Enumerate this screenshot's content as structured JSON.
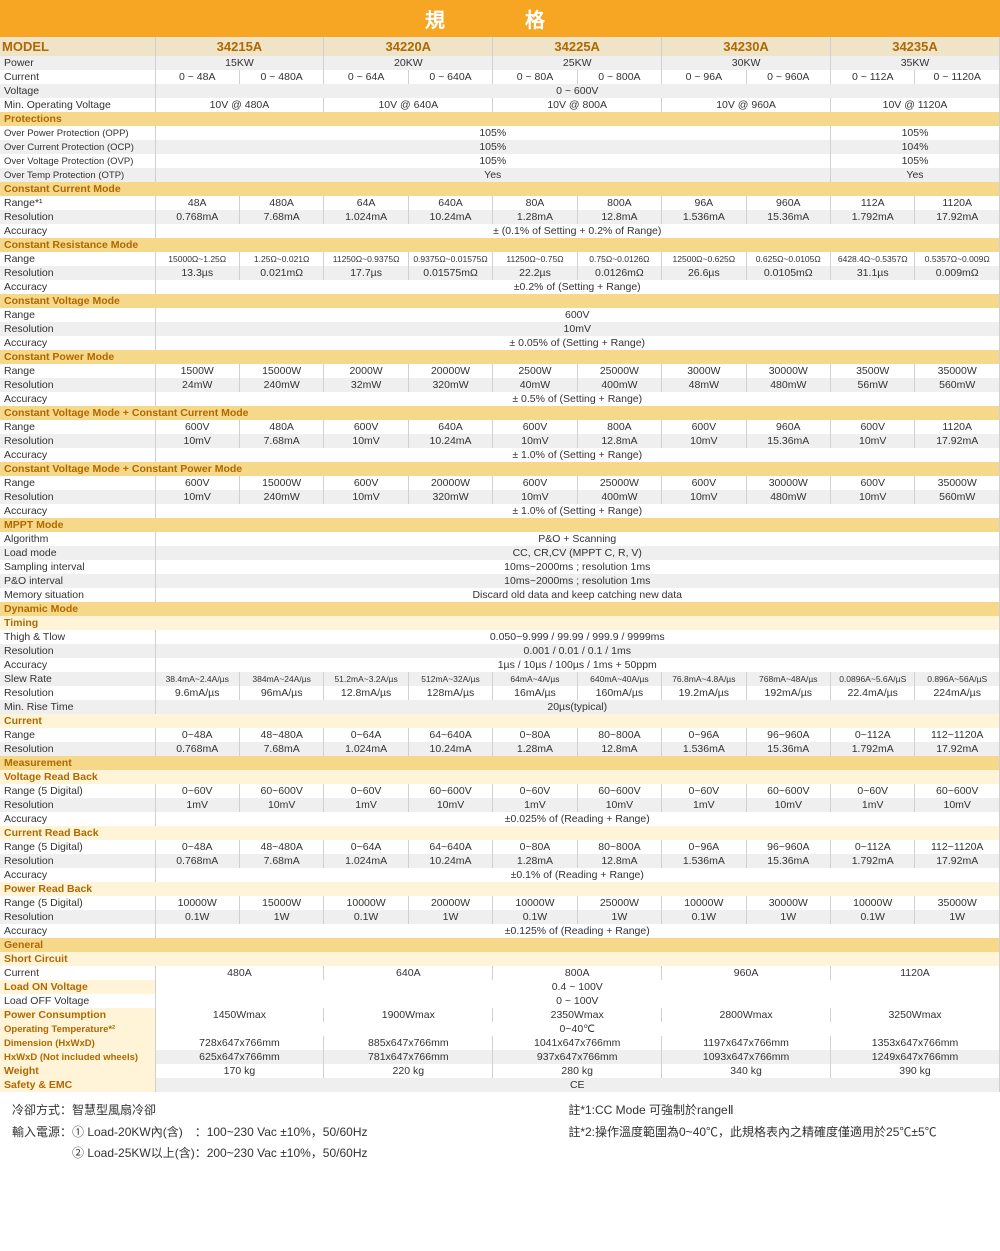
{
  "title": "規　格",
  "models": [
    "34215A",
    "34220A",
    "34225A",
    "34230A",
    "34235A"
  ],
  "rows": [
    {
      "l": "MODEL",
      "hdr": 1,
      "per": 1,
      "v": [
        "34215A",
        "34220A",
        "34225A",
        "34230A",
        "34235A"
      ]
    },
    {
      "l": "Power",
      "v": [
        "15KW",
        "20KW",
        "25KW",
        "30KW",
        "35KW"
      ],
      "per": 1,
      "alt": 1
    },
    {
      "l": "Current",
      "v": [
        "0 ~ 48A",
        "0 ~ 480A",
        "0 ~ 64A",
        "0 ~ 640A",
        "0 ~ 80A",
        "0 ~ 800A",
        "0 ~ 96A",
        "0 ~ 960A",
        "0 ~ 112A",
        "0 ~ 1120A"
      ]
    },
    {
      "l": "Voltage",
      "span": 1,
      "v": "0 ~ 600V",
      "alt": 1
    },
    {
      "l": "Min. Operating Voltage",
      "per": 1,
      "v": [
        "10V @ 480A",
        "10V @ 640A",
        "10V @ 800A",
        "10V @ 960A",
        "10V @ 1120A"
      ]
    },
    {
      "sec": "Protections"
    },
    {
      "l": "Over Power Protection (OPP)",
      "sm": 1,
      "v82": [
        "105%",
        "105%"
      ]
    },
    {
      "l": "Over Current Protection (OCP)",
      "sm": 1,
      "v82": [
        "105%",
        "104%"
      ],
      "alt": 1
    },
    {
      "l": "Over Voltage Protection (OVP)",
      "sm": 1,
      "v82": [
        "105%",
        "105%"
      ]
    },
    {
      "l": "Over Temp Protection (OTP)",
      "sm": 1,
      "v82": [
        "Yes",
        "Yes"
      ],
      "alt": 1
    },
    {
      "sec": "Constant Current Mode"
    },
    {
      "l": "Range*¹",
      "v": [
        "48A",
        "480A",
        "64A",
        "640A",
        "80A",
        "800A",
        "96A",
        "960A",
        "112A",
        "1120A"
      ]
    },
    {
      "l": "Resolution",
      "v": [
        "0.768mA",
        "7.68mA",
        "1.024mA",
        "10.24mA",
        "1.28mA",
        "12.8mA",
        "1.536mA",
        "15.36mA",
        "1.792mA",
        "17.92mA"
      ],
      "alt": 1
    },
    {
      "l": "Accuracy",
      "span": 1,
      "v": "± (0.1% of Setting + 0.2% of Range)"
    },
    {
      "sec": "Constant Resistance Mode"
    },
    {
      "l": "Range",
      "v": [
        "15000Ω~1.25Ω",
        "1.25Ω~0.021Ω",
        "11250Ω~0.9375Ω",
        "0.9375Ω~0.01575Ω",
        "11250Ω~0.75Ω",
        "0.75Ω~0.0126Ω",
        "12500Ω~0.625Ω",
        "0.625Ω~0.0105Ω",
        "6428.4Ω~0.5357Ω",
        "0.5357Ω~0.009Ω"
      ],
      "fs": "8.5px"
    },
    {
      "l": "Resolution",
      "v": [
        "13.3µs",
        "0.021mΩ",
        "17.7µs",
        "0.01575mΩ",
        "22.2µs",
        "0.0126mΩ",
        "26.6µs",
        "0.0105mΩ",
        "31.1µs",
        "0.009mΩ"
      ],
      "alt": 1
    },
    {
      "l": "Accuracy",
      "span": 1,
      "v": "±0.2% of (Setting + Range)"
    },
    {
      "sec": "Constant Voltage Mode"
    },
    {
      "l": "Range",
      "span": 1,
      "v": "600V"
    },
    {
      "l": "Resolution",
      "span": 1,
      "v": "10mV",
      "alt": 1
    },
    {
      "l": "Accuracy",
      "span": 1,
      "v": "± 0.05% of (Setting + Range)"
    },
    {
      "sec": "Constant Power Mode"
    },
    {
      "l": "Range",
      "v": [
        "1500W",
        "15000W",
        "2000W",
        "20000W",
        "2500W",
        "25000W",
        "3000W",
        "30000W",
        "3500W",
        "35000W"
      ]
    },
    {
      "l": "Resolution",
      "v": [
        "24mW",
        "240mW",
        "32mW",
        "320mW",
        "40mW",
        "400mW",
        "48mW",
        "480mW",
        "56mW",
        "560mW"
      ],
      "alt": 1
    },
    {
      "l": "Accuracy",
      "span": 1,
      "v": "± 0.5% of (Setting + Range)"
    },
    {
      "sec": "Constant Voltage Mode + Constant Current Mode"
    },
    {
      "l": "Range",
      "v": [
        "600V",
        "480A",
        "600V",
        "640A",
        "600V",
        "800A",
        "600V",
        "960A",
        "600V",
        "1120A"
      ]
    },
    {
      "l": "Resolution",
      "v": [
        "10mV",
        "7.68mA",
        "10mV",
        "10.24mA",
        "10mV",
        "12.8mA",
        "10mV",
        "15.36mA",
        "10mV",
        "17.92mA"
      ],
      "alt": 1
    },
    {
      "l": "Accuracy",
      "span": 1,
      "v": "± 1.0% of (Setting + Range)"
    },
    {
      "sec": "Constant Voltage Mode + Constant Power Mode"
    },
    {
      "l": "Range",
      "v": [
        "600V",
        "15000W",
        "600V",
        "20000W",
        "600V",
        "25000W",
        "600V",
        "30000W",
        "600V",
        "35000W"
      ]
    },
    {
      "l": "Resolution",
      "v": [
        "10mV",
        "240mW",
        "10mV",
        "320mW",
        "10mV",
        "400mW",
        "10mV",
        "480mW",
        "10mV",
        "560mW"
      ],
      "alt": 1
    },
    {
      "l": "Accuracy",
      "span": 1,
      "v": "± 1.0% of (Setting + Range)"
    },
    {
      "sec": "MPPT Mode"
    },
    {
      "l": "Algorithm",
      "span": 1,
      "v": "P&O + Scanning"
    },
    {
      "l": "Load mode",
      "span": 1,
      "v": "CC, CR,CV (MPPT C, R, V)",
      "alt": 1
    },
    {
      "l": "Sampling interval",
      "span": 1,
      "v": "10ms~2000ms ; resolution 1ms"
    },
    {
      "l": "P&O interval",
      "span": 1,
      "v": "10ms~2000ms ; resolution 1ms",
      "alt": 1
    },
    {
      "l": "Memory situation",
      "span": 1,
      "v": "Discard old data and keep catching new data"
    },
    {
      "sec": "Dynamic Mode"
    },
    {
      "sub": "Timing"
    },
    {
      "l": "Thigh & Tlow",
      "span": 1,
      "v": "0.050~9.999 / 99.99 / 999.9 / 9999ms"
    },
    {
      "l": "Resolution",
      "span": 1,
      "v": "0.001 / 0.01 / 0.1 / 1ms",
      "alt": 1
    },
    {
      "l": "Accuracy",
      "span": 1,
      "v": "1µs / 10µs / 100µs / 1ms + 50ppm"
    },
    {
      "l": "Slew Rate",
      "v": [
        "38.4mA~2.4A/µs",
        "384mA~24A/µs",
        "51.2mA~3.2A/µs",
        "512mA~32A/µs",
        "64mA~4A/µs",
        "640mA~40A/µs",
        "76.8mA~4.8A/µs",
        "768mA~48A/µs",
        "0.0896A~5.6A/µS",
        "0.896A~56A/µS"
      ],
      "alt": 1,
      "fs": "8.5px"
    },
    {
      "l": "Resolution",
      "v": [
        "9.6mA/µs",
        "96mA/µs",
        "12.8mA/µs",
        "128mA/µs",
        "16mA/µs",
        "160mA/µs",
        "19.2mA/µs",
        "192mA/µs",
        "22.4mA/µs",
        "224mA/µs"
      ]
    },
    {
      "l": "Min. Rise Time",
      "span": 1,
      "v": "20µs(typical)",
      "alt": 1
    },
    {
      "sub": "Current"
    },
    {
      "l": "Range",
      "v": [
        "0~48A",
        "48~480A",
        "0~64A",
        "64~640A",
        "0~80A",
        "80~800A",
        "0~96A",
        "96~960A",
        "0~112A",
        "112~1120A"
      ]
    },
    {
      "l": "Resolution",
      "v": [
        "0.768mA",
        "7.68mA",
        "1.024mA",
        "10.24mA",
        "1.28mA",
        "12.8mA",
        "1.536mA",
        "15.36mA",
        "1.792mA",
        "17.92mA"
      ],
      "alt": 1
    },
    {
      "sec": "Measurement"
    },
    {
      "sub": "Voltage Read Back"
    },
    {
      "l": "Range (5 Digital)",
      "v": [
        "0~60V",
        "60~600V",
        "0~60V",
        "60~600V",
        "0~60V",
        "60~600V",
        "0~60V",
        "60~600V",
        "0~60V",
        "60~600V"
      ]
    },
    {
      "l": "Resolution",
      "v": [
        "1mV",
        "10mV",
        "1mV",
        "10mV",
        "1mV",
        "10mV",
        "1mV",
        "10mV",
        "1mV",
        "10mV"
      ],
      "alt": 1
    },
    {
      "l": "Accuracy",
      "span": 1,
      "v": "±0.025% of (Reading + Range)"
    },
    {
      "sub": "Current Read Back"
    },
    {
      "l": "Range (5 Digital)",
      "v": [
        "0~48A",
        "48~480A",
        "0~64A",
        "64~640A",
        "0~80A",
        "80~800A",
        "0~96A",
        "96~960A",
        "0~112A",
        "112~1120A"
      ]
    },
    {
      "l": "Resolution",
      "v": [
        "0.768mA",
        "7.68mA",
        "1.024mA",
        "10.24mA",
        "1.28mA",
        "12.8mA",
        "1.536mA",
        "15.36mA",
        "1.792mA",
        "17.92mA"
      ],
      "alt": 1
    },
    {
      "l": "Accuracy",
      "span": 1,
      "v": "±0.1% of (Reading + Range)"
    },
    {
      "sub": "Power Read Back"
    },
    {
      "l": "Range (5 Digital)",
      "v": [
        "10000W",
        "15000W",
        "10000W",
        "20000W",
        "10000W",
        "25000W",
        "10000W",
        "30000W",
        "10000W",
        "35000W"
      ]
    },
    {
      "l": "Resolution",
      "v": [
        "0.1W",
        "1W",
        "0.1W",
        "1W",
        "0.1W",
        "1W",
        "0.1W",
        "1W",
        "0.1W",
        "1W"
      ],
      "alt": 1
    },
    {
      "l": "Accuracy",
      "span": 1,
      "v": "±0.125% of (Reading + Range)"
    },
    {
      "sec": "General"
    },
    {
      "sub": "Short Circuit"
    },
    {
      "l": "Current",
      "per": 1,
      "v": [
        "480A",
        "640A",
        "800A",
        "960A",
        "1120A"
      ]
    },
    {
      "l": "Load ON Voltage",
      "sub1": 1,
      "span": 1,
      "v": "0.4 ~ 100V"
    },
    {
      "l": "Load OFF Voltage",
      "span": 1,
      "v": "0 ~ 100V"
    },
    {
      "l": "Power Consumption",
      "sub1": 1,
      "per": 1,
      "v": [
        "1450Wmax",
        "1900Wmax",
        "2350Wmax",
        "2800Wmax",
        "3250Wmax"
      ]
    },
    {
      "l": "Operating Temperature*²",
      "sub1": 1,
      "sm": 1,
      "span": 1,
      "v": "0~40℃"
    },
    {
      "l": "Dimension (HxWxD)",
      "sub1": 1,
      "per": 1,
      "v": [
        "728x647x766mm",
        "885x647x766mm",
        "1041x647x766mm",
        "1197x647x766mm",
        "1353x647x766mm"
      ],
      "sm": 1
    },
    {
      "l": "HxWxD (Not included wheels)",
      "sub1": 1,
      "per": 1,
      "v": [
        "625x647x766mm",
        "781x647x766mm",
        "937x647x766mm",
        "1093x647x766mm",
        "1249x647x766mm"
      ],
      "sm": 1,
      "alt": 1
    },
    {
      "l": "Weight",
      "sub1": 1,
      "per": 1,
      "v": [
        "170 kg",
        "220 kg",
        "280 kg",
        "340 kg",
        "390 kg"
      ]
    },
    {
      "l": "Safety & EMC",
      "sub1": 1,
      "span": 1,
      "v": "CE",
      "alt": 1
    }
  ],
  "footer": {
    "left": [
      "冷卻方式：智慧型風扇冷卻",
      "輸入電源：① Load-20KW內(含)　：100~230 Vac ±10%，50/60Hz",
      "　　　　　② Load-25KW以上(含)：200~230 Vac ±10%，50/60Hz"
    ],
    "right": [
      "註*1:CC Mode 可強制於rangeⅡ",
      "註*2:操作溫度範圍為0~40℃，此規格表內之精確度僅適用於25℃±5℃"
    ]
  }
}
